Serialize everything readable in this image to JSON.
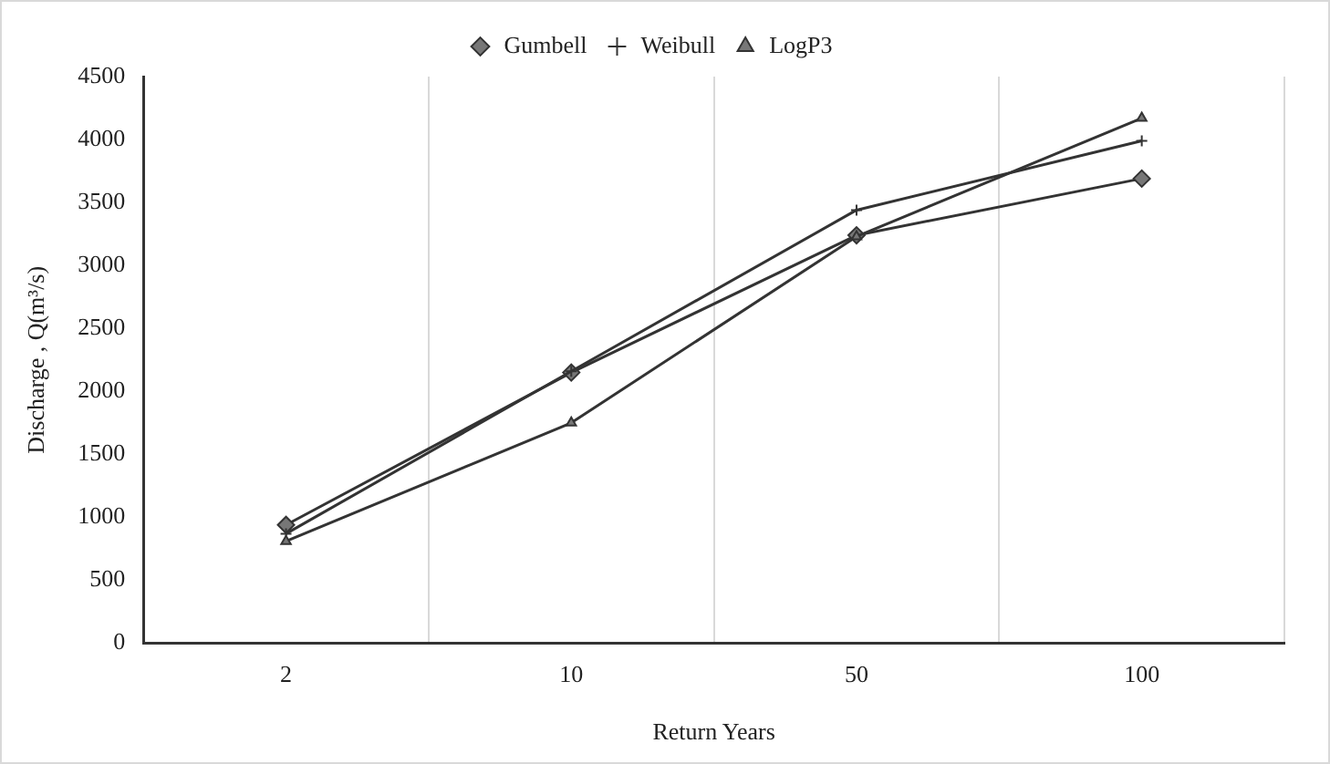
{
  "chart_data": {
    "type": "line",
    "xlabel": "Return Years",
    "ylabel": "Discharge , Q(m³/s)",
    "categories": [
      "2",
      "10",
      "50",
      "100"
    ],
    "series": [
      {
        "name": "Gumbell",
        "color": "#333333",
        "marker": "diamond",
        "values": [
          940,
          2150,
          3240,
          3690
        ]
      },
      {
        "name": "Weibull",
        "color": "#333333",
        "marker": "cross",
        "values": [
          870,
          2160,
          3440,
          3990
        ]
      },
      {
        "name": "LogP3",
        "color": "#333333",
        "marker": "triangle",
        "values": [
          810,
          1750,
          3230,
          4170
        ]
      }
    ],
    "ylim": [
      0,
      4500
    ],
    "yticks": [
      0,
      500,
      1000,
      1500,
      2000,
      2500,
      3000,
      3500,
      4000,
      4500
    ],
    "grid": "x",
    "legend": "top",
    "line_style": "solid"
  }
}
